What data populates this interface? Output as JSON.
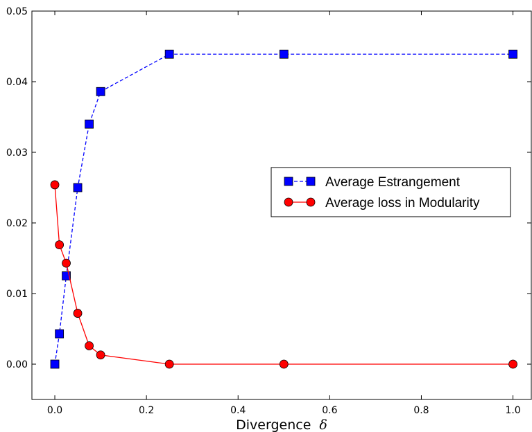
{
  "chart_data": {
    "type": "line",
    "xlabel": "Divergence",
    "xlabel_symbol": "δ",
    "ylabel": "",
    "xlim": [
      -0.05,
      1.04
    ],
    "ylim": [
      -0.005,
      0.05
    ],
    "x_ticks": [
      0.0,
      0.2,
      0.4,
      0.6,
      0.8,
      1.0
    ],
    "x_tick_labels": [
      "0.0",
      "0.2",
      "0.4",
      "0.6",
      "0.8",
      "1.0"
    ],
    "y_ticks": [
      0.0,
      0.01,
      0.02,
      0.03,
      0.04,
      0.05
    ],
    "y_tick_labels": [
      "0.00",
      "0.01",
      "0.02",
      "0.03",
      "0.04",
      "0.05"
    ],
    "grid": false,
    "legend_position": "center-right",
    "series": [
      {
        "name": "Average Estrangement",
        "color": "#0000ff",
        "line_style": "dashed",
        "marker": "square",
        "x": [
          0.0,
          0.01,
          0.025,
          0.05,
          0.075,
          0.1,
          0.25,
          0.5,
          1.0
        ],
        "y": [
          0.0,
          0.0043,
          0.0125,
          0.025,
          0.034,
          0.0386,
          0.0439,
          0.0439,
          0.0439
        ]
      },
      {
        "name": "Average loss in Modularity",
        "color": "#ff0000",
        "line_style": "solid",
        "marker": "circle",
        "x": [
          0.0,
          0.01,
          0.025,
          0.05,
          0.075,
          0.1,
          0.25,
          0.5,
          1.0
        ],
        "y": [
          0.0254,
          0.0169,
          0.0143,
          0.0072,
          0.0026,
          0.0013,
          0.0,
          0.0,
          0.0
        ]
      }
    ]
  }
}
